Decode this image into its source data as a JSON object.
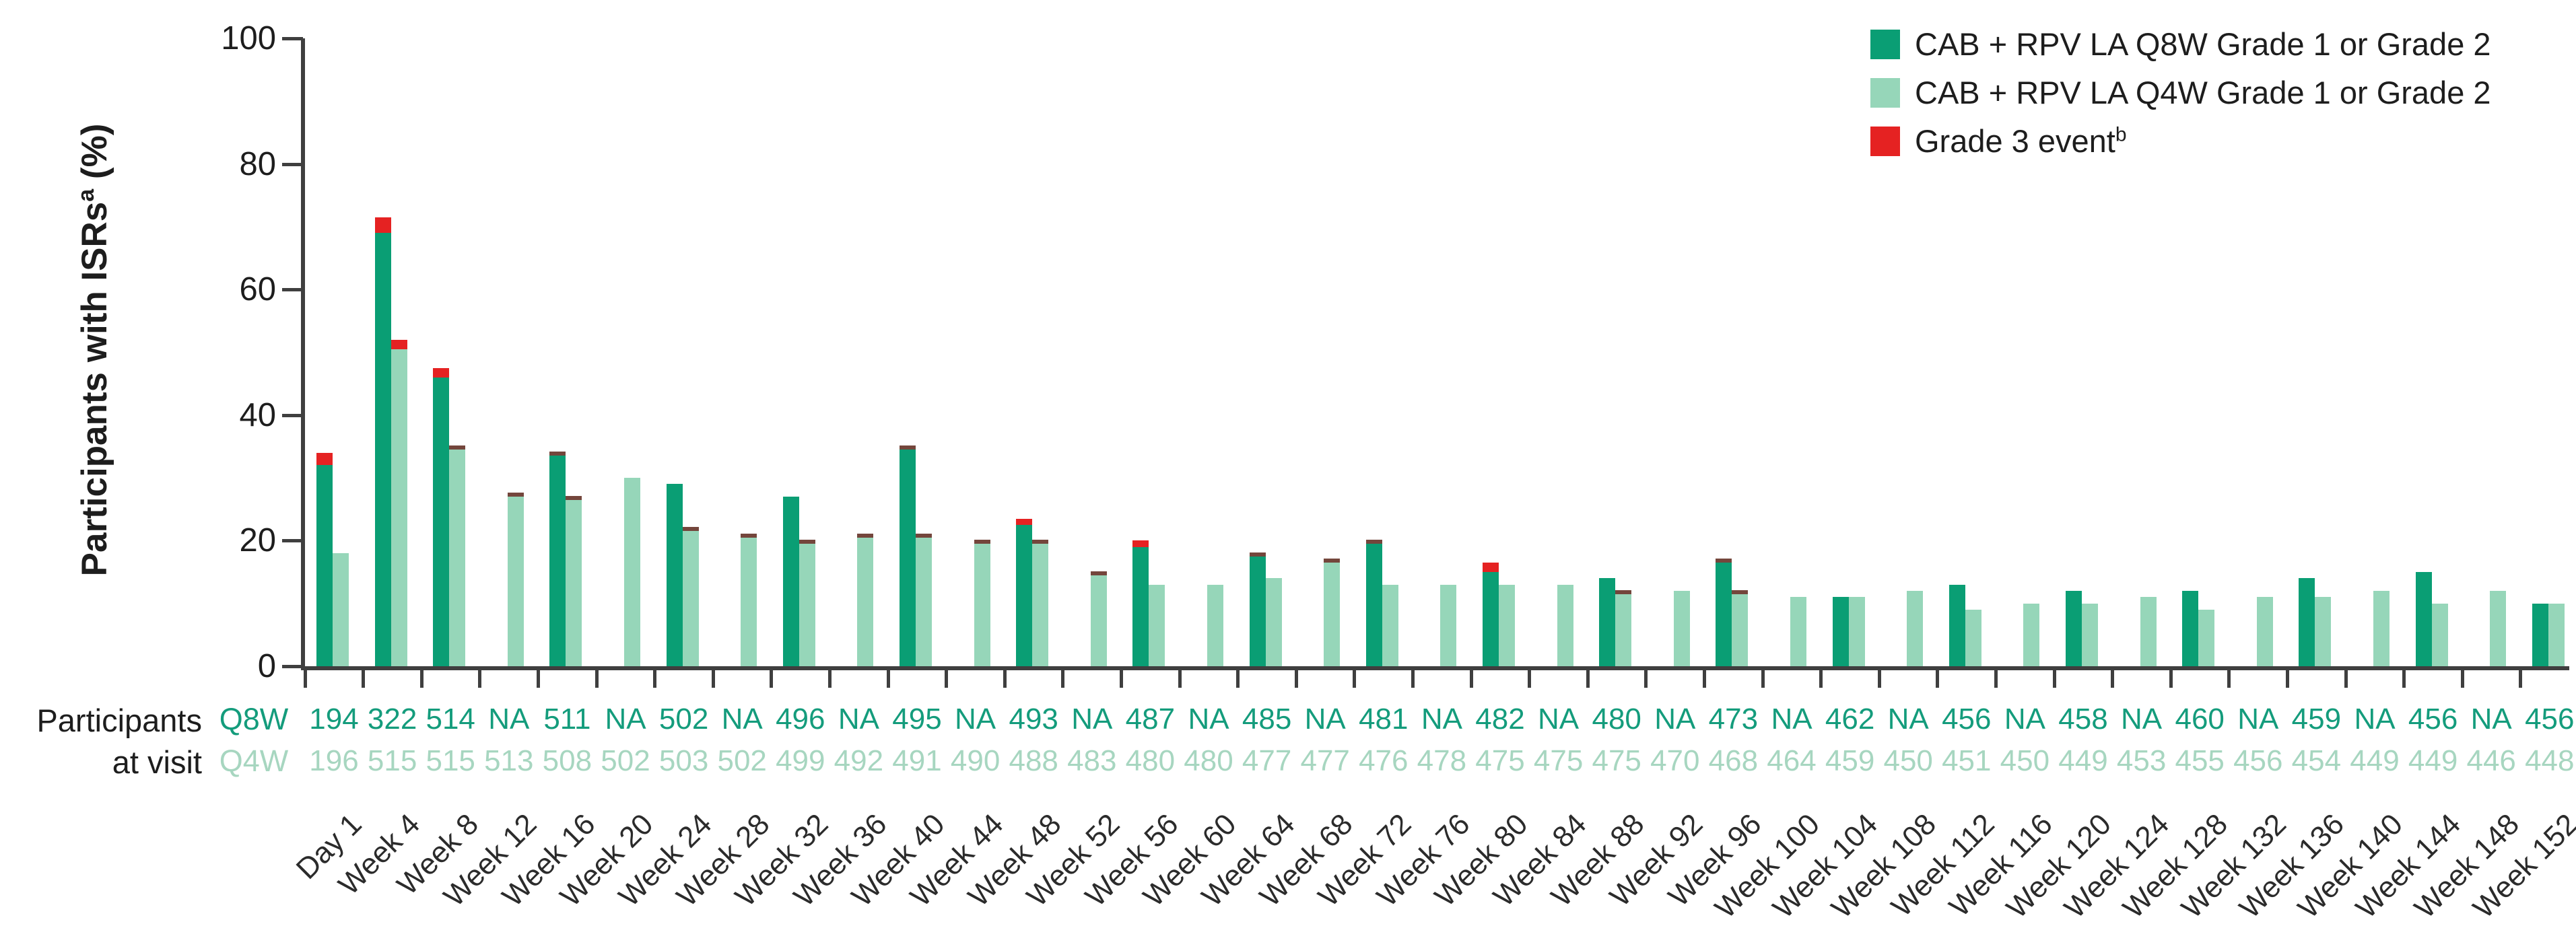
{
  "colors": {
    "q8w_bar": "#0a9e74",
    "q4w_bar": "#96d6b9",
    "grade3": "#e52222",
    "thin_cap": "#74463c",
    "axis": "#3f3f3f",
    "q8w_text": "#149c7c",
    "q4w_text": "#a7d6c0",
    "black_text": "#1d1d1d"
  },
  "y_axis": {
    "title_main": "Participants with ISRs",
    "title_sup": "a",
    "title_unit": " (%)",
    "ticks": [
      0,
      20,
      40,
      60,
      80,
      100
    ]
  },
  "legend": {
    "items": [
      {
        "label": "CAB + RPV LA Q8W Grade 1 or Grade 2",
        "swatch": "q8w_bar"
      },
      {
        "label": "CAB + RPV LA Q4W Grade 1 or Grade 2",
        "swatch": "q4w_bar"
      },
      {
        "label": "Grade 3 event",
        "sup": "b",
        "swatch": "grade3"
      }
    ]
  },
  "participants_label": {
    "line1": "Participants",
    "line2": "at visit"
  },
  "rows": {
    "q8w_label": "Q8W",
    "q4w_label": "Q4W"
  },
  "chart_data": {
    "type": "bar",
    "ylabel": "Participants with ISRsᵃ (%)",
    "ylim": [
      0,
      100
    ],
    "yticks": [
      0,
      20,
      40,
      60,
      80,
      100
    ],
    "grid": false,
    "legend_position": "top-right",
    "categories": [
      "Day 1",
      "Week 4",
      "Week 8",
      "Week 12",
      "Week 16",
      "Week 20",
      "Week 24",
      "Week 28",
      "Week 32",
      "Week 36",
      "Week 40",
      "Week 44",
      "Week 48",
      "Week 52",
      "Week 56",
      "Week 60",
      "Week 64",
      "Week 68",
      "Week 72",
      "Week 76",
      "Week 80",
      "Week 84",
      "Week 88",
      "Week 92",
      "Week 96",
      "Week 100",
      "Week 104",
      "Week 108",
      "Week 112",
      "Week 116",
      "Week 120",
      "Week 124",
      "Week 128",
      "Week 132",
      "Week 136",
      "Week 140",
      "Week 144",
      "Week 148",
      "Week 152"
    ],
    "series": [
      {
        "name": "CAB + RPV LA Q8W Grade 1 or Grade 2",
        "color": "#0a9e74",
        "grade12_pct": [
          32,
          69,
          46,
          null,
          33.5,
          null,
          29,
          null,
          27,
          null,
          34.5,
          null,
          22.5,
          null,
          19,
          null,
          17.5,
          null,
          19.5,
          null,
          15,
          null,
          14,
          null,
          16.5,
          null,
          11,
          null,
          13,
          null,
          12,
          null,
          12,
          null,
          14,
          null,
          15,
          null,
          10
        ],
        "grade3_pct": [
          2,
          2.5,
          1.5,
          null,
          0.5,
          null,
          0,
          null,
          0,
          null,
          0.5,
          null,
          1,
          null,
          1,
          null,
          0.5,
          null,
          0.5,
          null,
          1.5,
          null,
          0,
          null,
          0.5,
          null,
          0,
          null,
          0,
          null,
          0,
          null,
          0,
          null,
          0,
          null,
          0,
          null,
          0
        ]
      },
      {
        "name": "CAB + RPV LA Q4W Grade 1 or Grade 2",
        "color": "#96d6b9",
        "grade12_pct": [
          18,
          50.5,
          34.5,
          27,
          26.5,
          30,
          21.5,
          20.5,
          19.5,
          20.5,
          20.5,
          19.5,
          19.5,
          14.5,
          13,
          13,
          14,
          16.5,
          13,
          13,
          13,
          13,
          11.5,
          12,
          11.5,
          11,
          11,
          12,
          9,
          10,
          10,
          11,
          9,
          11,
          11,
          12,
          10,
          12,
          10
        ],
        "grade3_pct": [
          0,
          1.5,
          0.5,
          0.5,
          0.5,
          0,
          0.5,
          0.5,
          0.5,
          0.5,
          0.5,
          0.5,
          0.5,
          0.5,
          0,
          0,
          0,
          0.5,
          0,
          0,
          0,
          0,
          0.5,
          0,
          0.5,
          0,
          0,
          0,
          0,
          0,
          0,
          0,
          0,
          0,
          0,
          0,
          0,
          0,
          0
        ]
      }
    ],
    "grade3_legend": "Grade 3 eventᵇ",
    "grade3_color": "#e52222",
    "participants_at_visit": {
      "Q8W": [
        "194",
        "322",
        "514",
        "NA",
        "511",
        "NA",
        "502",
        "NA",
        "496",
        "NA",
        "495",
        "NA",
        "493",
        "NA",
        "487",
        "NA",
        "485",
        "NA",
        "481",
        "NA",
        "482",
        "NA",
        "480",
        "NA",
        "473",
        "NA",
        "462",
        "NA",
        "456",
        "NA",
        "458",
        "NA",
        "460",
        "NA",
        "459",
        "NA",
        "456",
        "NA",
        "456"
      ],
      "Q4W": [
        "196",
        "515",
        "515",
        "513",
        "508",
        "502",
        "503",
        "502",
        "499",
        "492",
        "491",
        "490",
        "488",
        "483",
        "480",
        "480",
        "477",
        "477",
        "476",
        "478",
        "475",
        "475",
        "475",
        "470",
        "468",
        "464",
        "459",
        "450",
        "451",
        "450",
        "449",
        "453",
        "455",
        "456",
        "454",
        "449",
        "449",
        "446",
        "448"
      ]
    }
  }
}
